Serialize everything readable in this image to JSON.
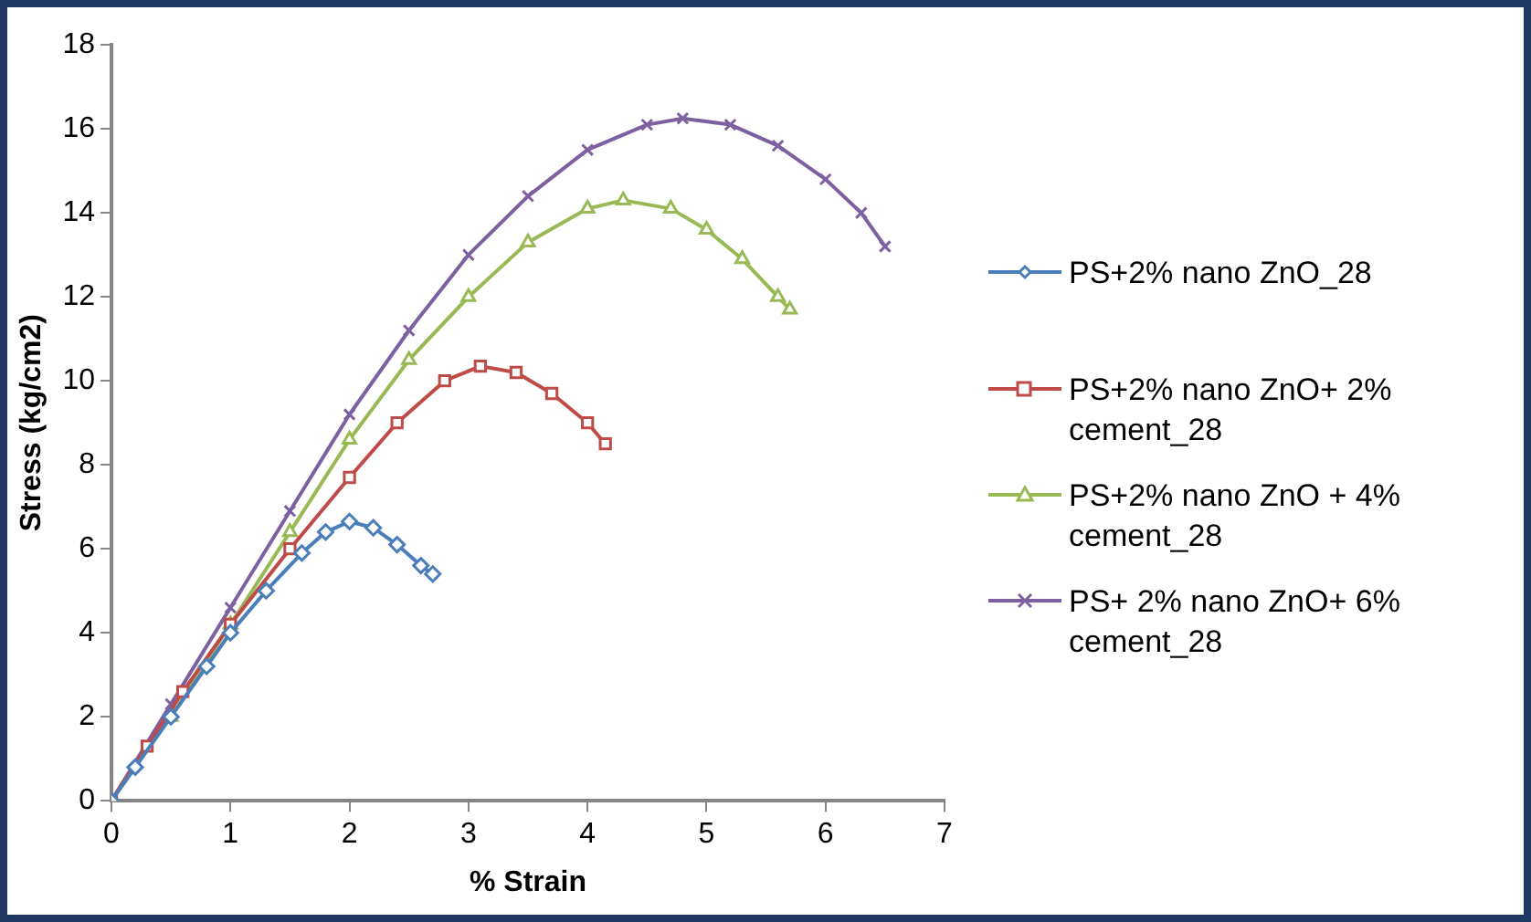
{
  "chart_data": {
    "type": "line",
    "xlabel": "% Strain",
    "ylabel": "Stress (kg/cm2)",
    "xlim": [
      0,
      7
    ],
    "xticks": [
      0,
      1,
      2,
      3,
      4,
      5,
      6,
      7
    ],
    "ylim": [
      0,
      18
    ],
    "yticks": [
      0,
      2,
      4,
      6,
      8,
      10,
      12,
      14,
      16,
      18
    ],
    "grid": false,
    "legend": "right",
    "series": [
      {
        "name": "PS+2% nano ZnO_28",
        "color": "#4a7ebb",
        "marker": "diamond",
        "x": [
          0,
          0.2,
          0.5,
          0.8,
          1.0,
          1.3,
          1.6,
          1.8,
          2.0,
          2.2,
          2.4,
          2.6,
          2.7
        ],
        "values": [
          0,
          0.8,
          2.0,
          3.2,
          4.0,
          5.0,
          5.9,
          6.4,
          6.65,
          6.5,
          6.1,
          5.6,
          5.4
        ]
      },
      {
        "name": "PS+2% nano ZnO+ 2% cement_28",
        "color": "#be4b48",
        "marker": "square",
        "x": [
          0,
          0.3,
          0.6,
          1.0,
          1.5,
          2.0,
          2.4,
          2.8,
          3.1,
          3.4,
          3.7,
          4.0,
          4.15
        ],
        "values": [
          0,
          1.3,
          2.6,
          4.2,
          6.0,
          7.7,
          9.0,
          10.0,
          10.35,
          10.2,
          9.7,
          9.0,
          8.5
        ]
      },
      {
        "name": "PS+2% nano ZnO + 4% cement_28",
        "color": "#98b954",
        "marker": "triangle",
        "x": [
          0,
          0.5,
          1.0,
          1.5,
          2.0,
          2.5,
          3.0,
          3.5,
          4.0,
          4.3,
          4.7,
          5.0,
          5.3,
          5.6,
          5.7
        ],
        "values": [
          0,
          2.0,
          4.2,
          6.4,
          8.6,
          10.5,
          12.0,
          13.3,
          14.1,
          14.3,
          14.1,
          13.6,
          12.9,
          12.0,
          11.7
        ]
      },
      {
        "name": "PS+ 2% nano ZnO+ 6% cement_28",
        "color": "#7d60a0",
        "marker": "cross",
        "x": [
          0,
          0.5,
          1.0,
          1.5,
          2.0,
          2.5,
          3.0,
          3.5,
          4.0,
          4.5,
          4.8,
          5.2,
          5.6,
          6.0,
          6.3,
          6.5
        ],
        "values": [
          0,
          2.3,
          4.6,
          6.9,
          9.2,
          11.2,
          13.0,
          14.4,
          15.5,
          16.1,
          16.25,
          16.1,
          15.6,
          14.8,
          14.0,
          13.2
        ]
      }
    ]
  }
}
